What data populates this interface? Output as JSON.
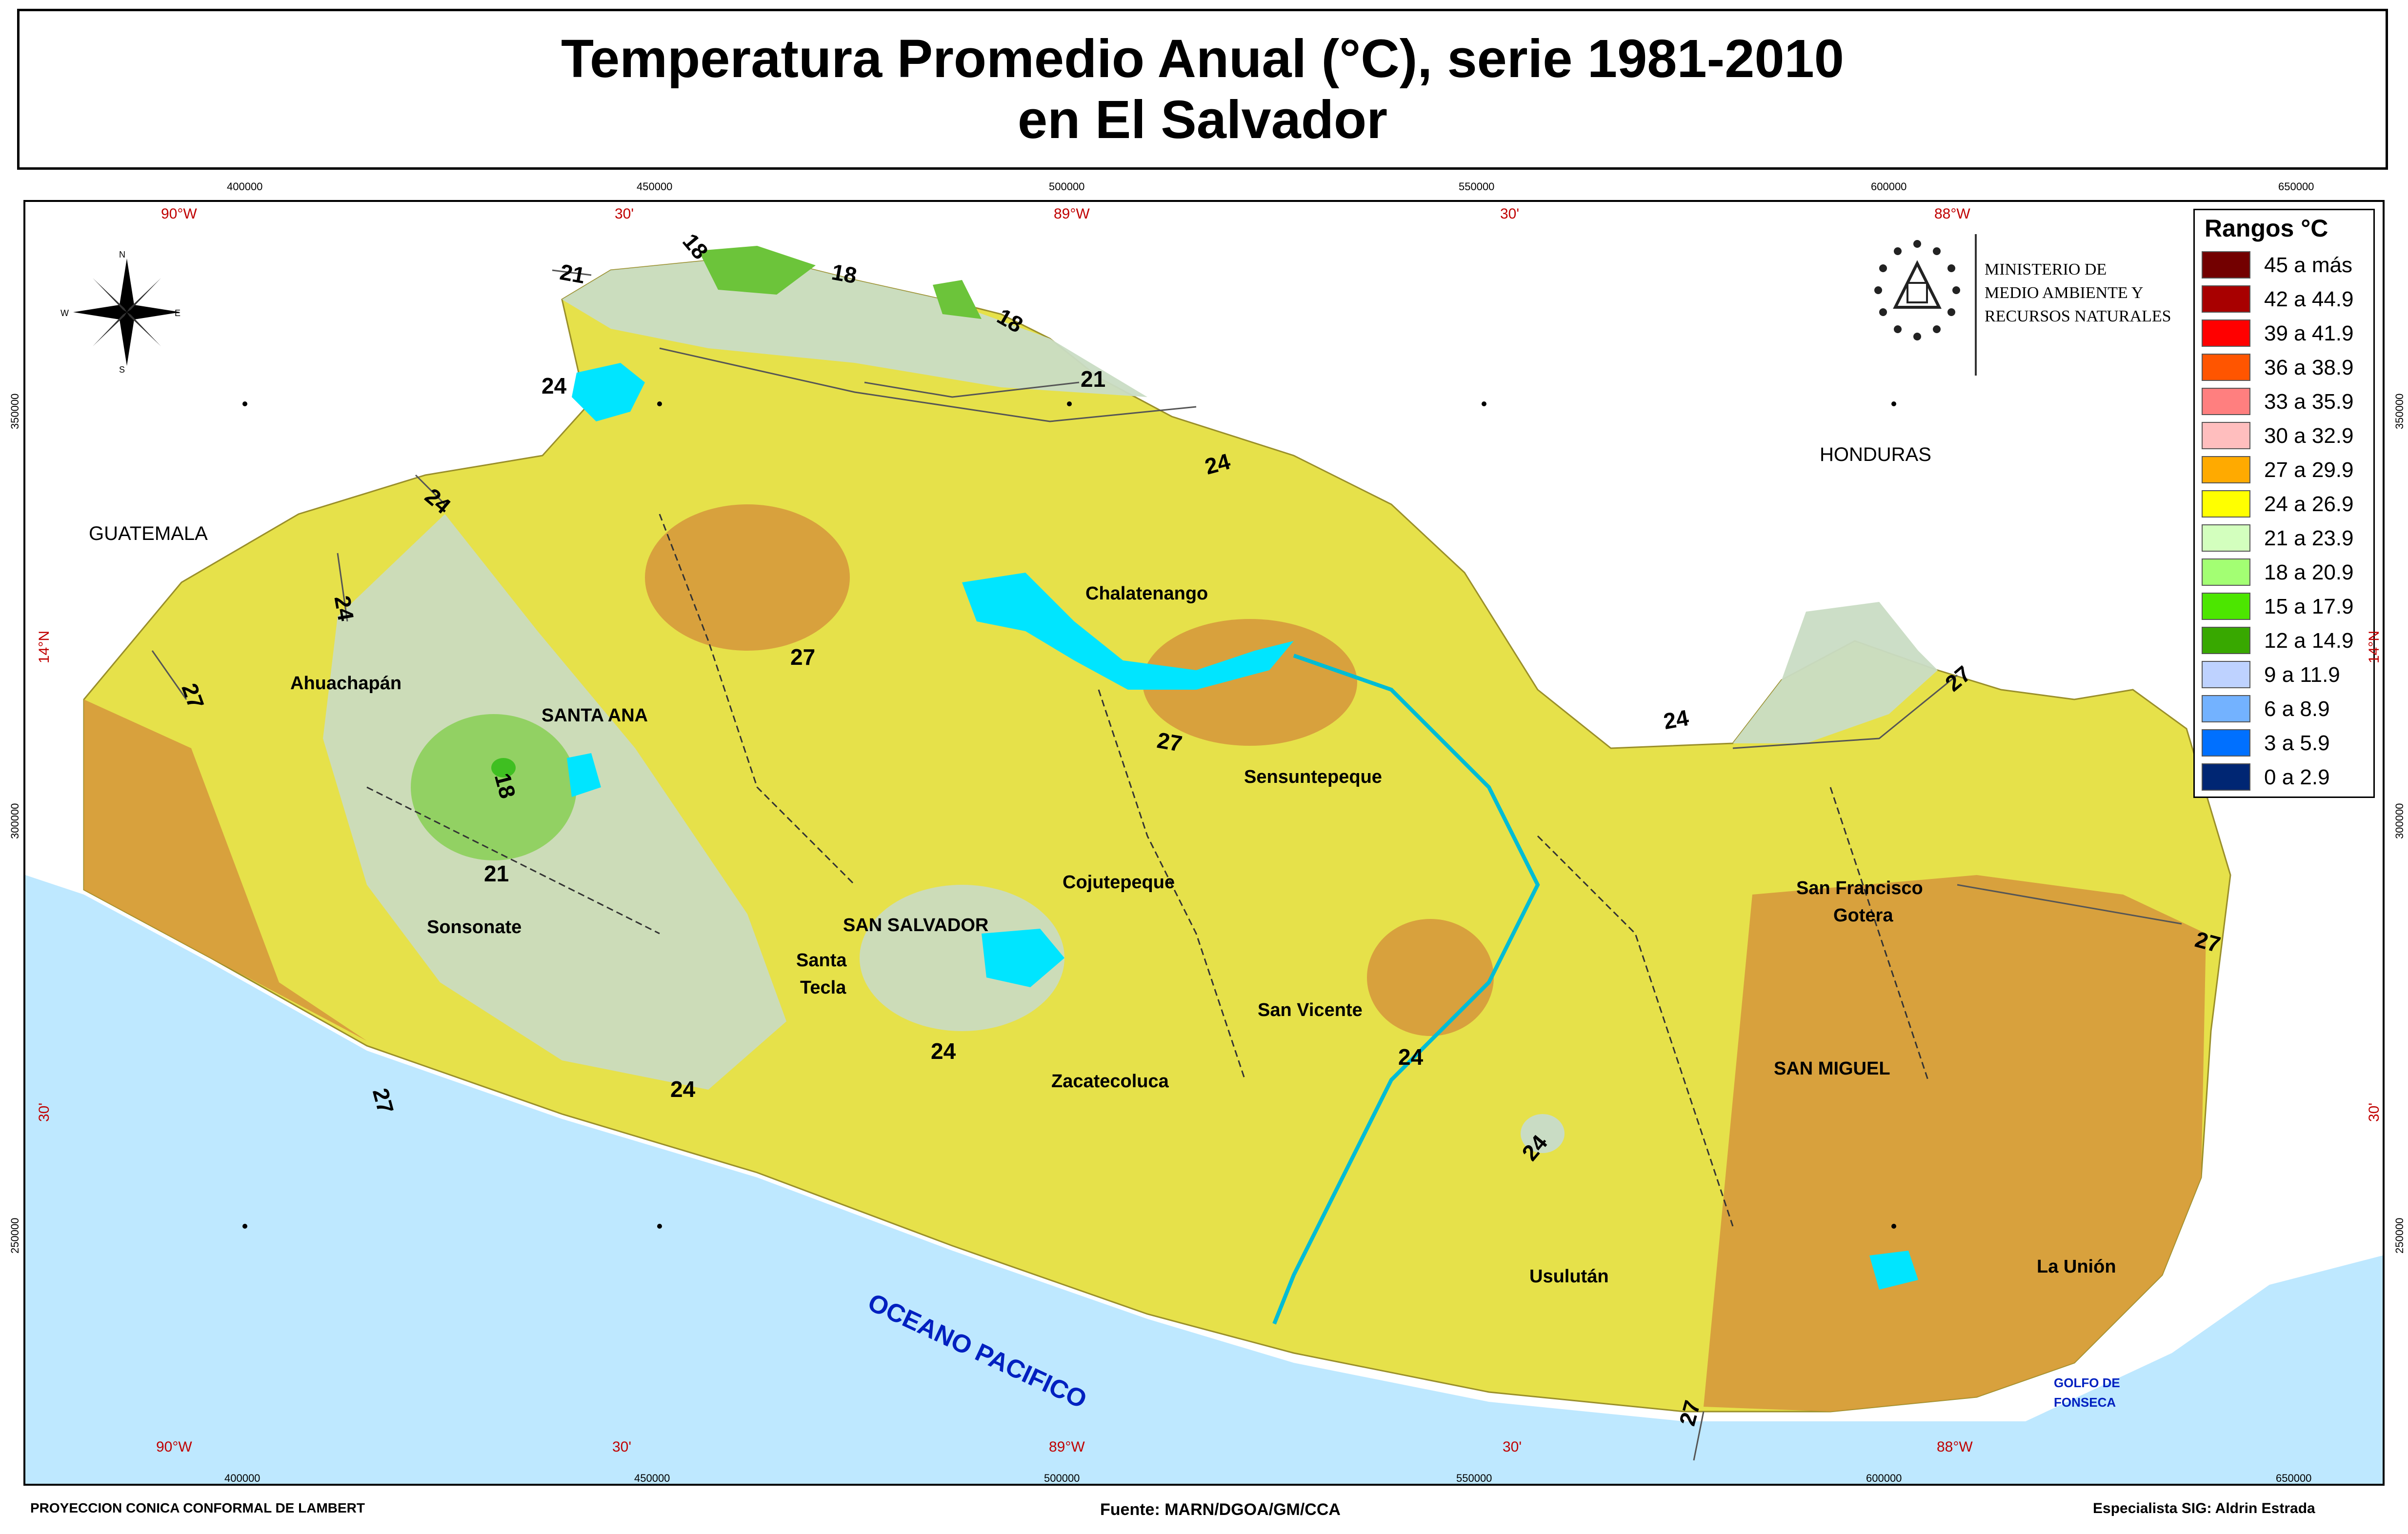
{
  "title": {
    "line1": "Temperatura Promedio Anual (°C), serie 1981-2010",
    "line2": "en El Salvador"
  },
  "grid": {
    "top_meters": [
      "400000",
      "450000",
      "500000",
      "550000",
      "600000",
      "650000"
    ],
    "top_degrees": [
      "90°W",
      "30'",
      "89°W",
      "30'",
      "88°W"
    ],
    "bottom_degrees": [
      "90°W",
      "30'",
      "89°W",
      "30'",
      "88°W"
    ],
    "bottom_meters": [
      "400000",
      "450000",
      "500000",
      "550000",
      "600000",
      "650000"
    ],
    "side_meters": [
      "350000",
      "300000",
      "250000"
    ],
    "side_degrees": [
      "14°N",
      "30'"
    ]
  },
  "north_arrow": {
    "n": "N",
    "s": "S",
    "e": "E",
    "w": "W"
  },
  "ministry": {
    "line1": "MINISTERIO DE",
    "line2": "MEDIO AMBIENTE Y",
    "line3": "RECURSOS NATURALES"
  },
  "legend": {
    "title": "Rangos °C",
    "items": [
      {
        "label": "45 a más",
        "color": "#730000"
      },
      {
        "label": "42 a 44.9",
        "color": "#a80000"
      },
      {
        "label": "39 a 41.9",
        "color": "#ff0000"
      },
      {
        "label": "36 a 38.9",
        "color": "#ff5500"
      },
      {
        "label": "33 a 35.9",
        "color": "#ff7f7f"
      },
      {
        "label": "30 a 32.9",
        "color": "#ffbebe"
      },
      {
        "label": "27 a 29.9",
        "color": "#ffaa00"
      },
      {
        "label": "24 a 26.9",
        "color": "#ffff00"
      },
      {
        "label": "21 a 23.9",
        "color": "#d3ffbe"
      },
      {
        "label": "18 a 20.9",
        "color": "#a3ff73"
      },
      {
        "label": "15 a 17.9",
        "color": "#4ce600"
      },
      {
        "label": "12 a 14.9",
        "color": "#38a800"
      },
      {
        "label": "9 a 11.9",
        "color": "#bed2ff"
      },
      {
        "label": "6 a 8.9",
        "color": "#73b2ff"
      },
      {
        "label": "3 a 5.9",
        "color": "#0070ff"
      },
      {
        "label": "0 a 2.9",
        "color": "#002673"
      }
    ]
  },
  "places": {
    "guatemala": "GUATEMALA",
    "honduras": "HONDURAS",
    "ahuachapan": "Ahuachapán",
    "santa_ana": "SANTA ANA",
    "sonsonate": "Sonsonate",
    "chalatenango": "Chalatenango",
    "sensuntepeque": "Sensuntepeque",
    "cojutepeque": "Cojutepeque",
    "san_salvador": "SAN SALVADOR",
    "santa": "Santa",
    "tecla": "Tecla",
    "zacatecoluca": "Zacatecoluca",
    "san_vicente": "San Vicente",
    "san_francisco": "San Francisco",
    "gotera": "Gotera",
    "san_miguel": "SAN MIGUEL",
    "usulutan": "Usulután",
    "la_union": "La Unión",
    "oceano": "OCEANO PACIFICO",
    "golfo1": "GOLFO DE",
    "golfo2": "FONSECA"
  },
  "isotherms": [
    "21",
    "18",
    "18",
    "18",
    "21",
    "24",
    "24",
    "24",
    "24",
    "27",
    "27",
    "27",
    "18",
    "21",
    "24",
    "24",
    "24",
    "27",
    "24",
    "24",
    "27",
    "27",
    "27"
  ],
  "footer": {
    "projection": "PROYECCION CONICA CONFORMAL DE LAMBERT",
    "source": "Fuente: MARN/DGOA/GM/CCA",
    "specialist": "Especialista SIG: Aldrin Estrada"
  }
}
